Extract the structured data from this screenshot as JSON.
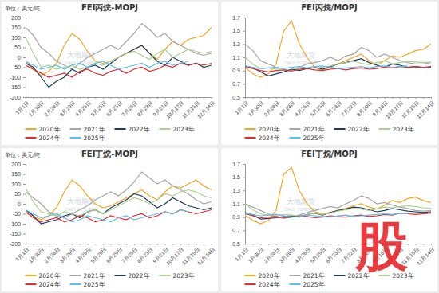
{
  "chart_data": [
    {
      "type": "line",
      "title": "FEI丙烷-MOPJ",
      "ylabel": "单位：美元/吨",
      "categories": [
        "1月1日",
        null,
        "1月30日",
        null,
        "2月28日",
        null,
        "3月29日",
        null,
        "4月28日",
        null,
        "5月25日",
        null,
        "6月25日",
        null,
        "7月25日",
        null,
        "8月23日",
        null,
        "9月21日",
        null,
        "10月17日",
        null,
        "11月15日",
        null,
        "12月14日"
      ],
      "ylim": [
        -200,
        200
      ],
      "yticks": [
        -200,
        -150,
        -100,
        -50,
        0,
        50,
        100,
        150,
        200
      ],
      "grid": false,
      "legend": "bottom",
      "annotations": [
        "大地期货",
        "DADI FUTURES"
      ],
      "series": [
        {
          "name": "2020年",
          "color": "#f5a623",
          "values": [
            -20,
            -60,
            -90,
            -70,
            -30,
            60,
            120,
            90,
            30,
            -20,
            -30,
            -20,
            0,
            20,
            40,
            60,
            20,
            -10,
            40,
            80,
            60,
            90,
            100,
            110,
            150
          ]
        },
        {
          "name": "2021年",
          "color": "#a6a6a6",
          "values": [
            150,
            110,
            50,
            20,
            -20,
            -40,
            -60,
            -30,
            0,
            20,
            40,
            60,
            40,
            80,
            120,
            170,
            140,
            100,
            120,
            80,
            60,
            40,
            20,
            10,
            20
          ]
        },
        {
          "name": "2022年",
          "color": "#1f3864",
          "values": [
            -30,
            -50,
            -100,
            -150,
            -120,
            -100,
            -60,
            -80,
            -50,
            -40,
            -60,
            -30,
            0,
            20,
            40,
            60,
            20,
            -20,
            -40,
            0,
            -20,
            -40,
            -30,
            -50,
            -40
          ]
        },
        {
          "name": "2023年",
          "color": "#a9d18e",
          "values": [
            100,
            20,
            -50,
            -40,
            -60,
            -50,
            -40,
            -60,
            -50,
            -30,
            -40,
            -20,
            0,
            20,
            30,
            10,
            -10,
            20,
            40,
            0,
            20,
            40,
            30,
            20,
            30
          ]
        },
        {
          "name": "2024年",
          "color": "#e8282b",
          "values": [
            -40,
            -60,
            -80,
            -100,
            -90,
            -80,
            -100,
            -70,
            -60,
            -80,
            -90,
            -70,
            -60,
            -80,
            -60,
            -50,
            -70,
            -60,
            -40,
            -50,
            -30,
            -40,
            -30,
            -40,
            -30
          ]
        },
        {
          "name": "2025年",
          "color": "#5bc0eb",
          "values": [
            -20,
            -40,
            -60,
            -50,
            -40,
            -60,
            -40,
            -30,
            -50,
            -30,
            -20,
            -40,
            -60,
            -50,
            -40,
            -30,
            -50,
            -30,
            -20,
            -40,
            -30,
            -20,
            null,
            null,
            null
          ]
        }
      ]
    },
    {
      "type": "line",
      "title": "FEI丙烷/MOPJ",
      "categories": [
        "1月1日",
        null,
        "1月30日",
        null,
        "2月28日",
        null,
        "3月28日",
        null,
        "4月26日",
        null,
        "5月25日",
        null,
        "6月23日",
        null,
        "7月22日",
        null,
        "8月20日",
        null,
        "9月18日",
        null,
        "10月17日",
        null,
        "11月15日",
        null,
        "12月14日"
      ],
      "ylim": [
        0.5,
        1.7
      ],
      "yticks": [
        0.5,
        0.7,
        0.9,
        1.1,
        1.3,
        1.5,
        1.7
      ],
      "grid": false,
      "legend": "bottom",
      "annotations": [
        "大地期货",
        "DADI FUTURES"
      ],
      "series": [
        {
          "name": "2020年",
          "color": "#f5a623",
          "values": [
            0.95,
            0.85,
            0.8,
            0.85,
            1.0,
            1.5,
            1.65,
            1.3,
            1.1,
            0.95,
            0.9,
            0.95,
            1.0,
            1.05,
            1.1,
            1.15,
            1.05,
            0.98,
            1.05,
            1.12,
            1.1,
            1.15,
            1.2,
            1.22,
            1.3
          ]
        },
        {
          "name": "2021年",
          "color": "#a6a6a6",
          "values": [
            1.3,
            1.2,
            1.05,
            1.0,
            0.95,
            0.92,
            0.9,
            0.95,
            1.0,
            1.02,
            1.05,
            1.1,
            1.05,
            1.12,
            1.15,
            1.25,
            1.2,
            1.1,
            1.15,
            1.1,
            1.05,
            1.02,
            1.0,
            1.0,
            1.02
          ]
        },
        {
          "name": "2022年",
          "color": "#1f3864",
          "values": [
            0.97,
            0.94,
            0.88,
            0.82,
            0.85,
            0.88,
            0.92,
            0.9,
            0.93,
            0.95,
            0.92,
            0.96,
            1.0,
            1.02,
            1.05,
            1.08,
            1.02,
            0.98,
            0.95,
            1.0,
            0.98,
            0.95,
            0.96,
            0.94,
            0.95
          ]
        },
        {
          "name": "2023年",
          "color": "#a9d18e",
          "values": [
            1.1,
            1.0,
            0.93,
            0.94,
            0.92,
            0.93,
            0.95,
            0.92,
            0.93,
            0.96,
            0.95,
            0.97,
            1.0,
            1.02,
            1.04,
            1.01,
            0.99,
            1.02,
            1.05,
            1.0,
            1.02,
            1.04,
            1.03,
            1.02,
            1.03
          ]
        },
        {
          "name": "2024年",
          "color": "#e8282b",
          "values": [
            0.95,
            0.93,
            0.9,
            0.88,
            0.9,
            0.91,
            0.89,
            0.92,
            0.93,
            0.91,
            0.9,
            0.92,
            0.93,
            0.91,
            0.93,
            0.94,
            0.92,
            0.93,
            0.95,
            0.94,
            0.96,
            0.95,
            0.96,
            0.95,
            0.96
          ]
        },
        {
          "name": "2025年",
          "color": "#5bc0eb",
          "values": [
            0.97,
            0.95,
            0.93,
            0.94,
            0.95,
            0.93,
            0.95,
            0.96,
            0.94,
            0.96,
            0.97,
            0.95,
            0.93,
            0.94,
            0.95,
            0.96,
            0.94,
            0.96,
            0.97,
            0.95,
            0.96,
            0.97,
            null,
            null,
            null
          ]
        }
      ]
    },
    {
      "type": "line",
      "title": "FEI丁烷-MOPJ",
      "ylabel": "单位：美元/吨",
      "categories": [
        "1月1日",
        null,
        "1月30日",
        null,
        "2月28日",
        null,
        "3月29日",
        null,
        "4月28日",
        null,
        "5月25日",
        null,
        "6月25日",
        null,
        "7月25日",
        null,
        "8月23日",
        null,
        "9月21日",
        null,
        "10月17日",
        null,
        "11月15日",
        null,
        "12月14日"
      ],
      "ylim": [
        -200,
        200
      ],
      "yticks": [
        -200,
        -150,
        -100,
        -50,
        0,
        50,
        100,
        150,
        200
      ],
      "grid": false,
      "legend": "bottom",
      "annotations": [
        "大地期货",
        "DADI FUTURES"
      ],
      "series": [
        {
          "name": "2020年",
          "color": "#f5a623",
          "values": [
            -30,
            -60,
            -80,
            -60,
            -20,
            60,
            120,
            90,
            40,
            0,
            -20,
            -10,
            10,
            30,
            50,
            70,
            40,
            20,
            60,
            90,
            80,
            100,
            120,
            90,
            70
          ]
        },
        {
          "name": "2021年",
          "color": "#a6a6a6",
          "values": [
            60,
            30,
            0,
            -40,
            -60,
            -70,
            -50,
            -30,
            -10,
            20,
            40,
            60,
            40,
            70,
            110,
            160,
            130,
            100,
            120,
            90,
            70,
            50,
            20,
            0,
            10
          ]
        },
        {
          "name": "2022年",
          "color": "#1f3864",
          "values": [
            -30,
            -60,
            -100,
            -90,
            -80,
            -60,
            -50,
            -70,
            -40,
            -30,
            -50,
            -20,
            0,
            20,
            50,
            40,
            10,
            -20,
            0,
            30,
            10,
            -10,
            -20,
            -30,
            -20
          ]
        },
        {
          "name": "2023年",
          "color": "#a9d18e",
          "values": [
            80,
            10,
            -40,
            -50,
            -60,
            -40,
            -50,
            -60,
            -40,
            -30,
            -50,
            -30,
            -10,
            10,
            30,
            20,
            0,
            20,
            50,
            40,
            60,
            70,
            60,
            40,
            30
          ]
        },
        {
          "name": "2024年",
          "color": "#e8282b",
          "values": [
            -40,
            -70,
            -90,
            -80,
            -70,
            -90,
            -80,
            -60,
            -70,
            -90,
            -80,
            -60,
            -70,
            -80,
            -60,
            -50,
            -70,
            -60,
            -40,
            -50,
            -30,
            -40,
            -50,
            -40,
            -30
          ]
        },
        {
          "name": "2025年",
          "color": "#5bc0eb",
          "values": [
            -30,
            -50,
            -70,
            -60,
            -50,
            -70,
            -90,
            -80,
            -60,
            -70,
            -80,
            -90,
            -70,
            -60,
            -80,
            -70,
            -60,
            -50,
            -40,
            -50,
            -30,
            -40,
            null,
            null,
            null
          ]
        }
      ]
    },
    {
      "type": "line",
      "title": "FEI丁烷/MOPJ",
      "categories": [
        "1月1日",
        null,
        "1月30日",
        null,
        "2月28日",
        null,
        "3月28日",
        null,
        "4月26日",
        null,
        "5月25日",
        null,
        "6月23日",
        null,
        "7月22日",
        null,
        "8月20日",
        null,
        "9月18日",
        null,
        "10月17日",
        null,
        "11月15日",
        null,
        "12月14日"
      ],
      "ylim": [
        0.5,
        1.7
      ],
      "yticks": [
        0.5,
        0.7,
        0.9,
        1.1,
        1.3,
        1.5,
        1.7
      ],
      "grid": false,
      "legend": "bottom",
      "annotations": [
        "大地期货",
        "DADI FUTURES"
      ],
      "series": [
        {
          "name": "2020年",
          "color": "#f5a623",
          "values": [
            0.93,
            0.85,
            0.8,
            0.85,
            1.0,
            1.55,
            1.65,
            1.3,
            1.1,
            0.98,
            0.95,
            0.97,
            1.0,
            1.03,
            1.07,
            1.1,
            1.05,
            1.02,
            1.08,
            1.15,
            1.12,
            1.18,
            1.2,
            1.15,
            1.12
          ]
        },
        {
          "name": "2021年",
          "color": "#a6a6a6",
          "values": [
            1.1,
            1.05,
            1.0,
            0.95,
            0.9,
            0.88,
            0.9,
            0.93,
            0.97,
            1.0,
            1.03,
            1.06,
            1.04,
            1.1,
            1.15,
            1.22,
            1.18,
            1.1,
            1.12,
            1.08,
            1.05,
            1.03,
            1.0,
            0.99,
            1.0
          ]
        },
        {
          "name": "2022年",
          "color": "#1f3864",
          "values": [
            0.97,
            0.93,
            0.87,
            0.88,
            0.89,
            0.91,
            0.92,
            0.9,
            0.94,
            0.96,
            0.93,
            0.97,
            1.0,
            1.02,
            1.05,
            1.04,
            1.01,
            0.98,
            1.0,
            1.03,
            1.01,
            0.99,
            0.98,
            0.97,
            0.98
          ]
        },
        {
          "name": "2023年",
          "color": "#a9d18e",
          "values": [
            1.1,
            1.01,
            0.95,
            0.93,
            0.92,
            0.94,
            0.93,
            0.92,
            0.94,
            0.96,
            0.94,
            0.96,
            0.99,
            1.01,
            1.03,
            1.02,
            1.0,
            1.02,
            1.05,
            1.04,
            1.06,
            1.07,
            1.06,
            1.04,
            1.03
          ]
        },
        {
          "name": "2024年",
          "color": "#e8282b",
          "values": [
            0.95,
            0.92,
            0.89,
            0.9,
            0.91,
            0.89,
            0.9,
            0.92,
            0.91,
            0.89,
            0.9,
            0.92,
            0.91,
            0.9,
            0.92,
            0.93,
            0.91,
            0.92,
            0.94,
            0.93,
            0.96,
            0.95,
            0.94,
            0.95,
            0.96
          ]
        },
        {
          "name": "2025年",
          "color": "#5bc0eb",
          "values": [
            0.96,
            0.94,
            0.92,
            0.93,
            0.94,
            0.92,
            0.9,
            0.91,
            0.93,
            0.92,
            0.91,
            0.9,
            0.92,
            0.93,
            0.91,
            0.92,
            0.93,
            0.94,
            0.95,
            0.94,
            0.96,
            0.95,
            null,
            null,
            null
          ]
        }
      ]
    }
  ],
  "stamp": "股"
}
